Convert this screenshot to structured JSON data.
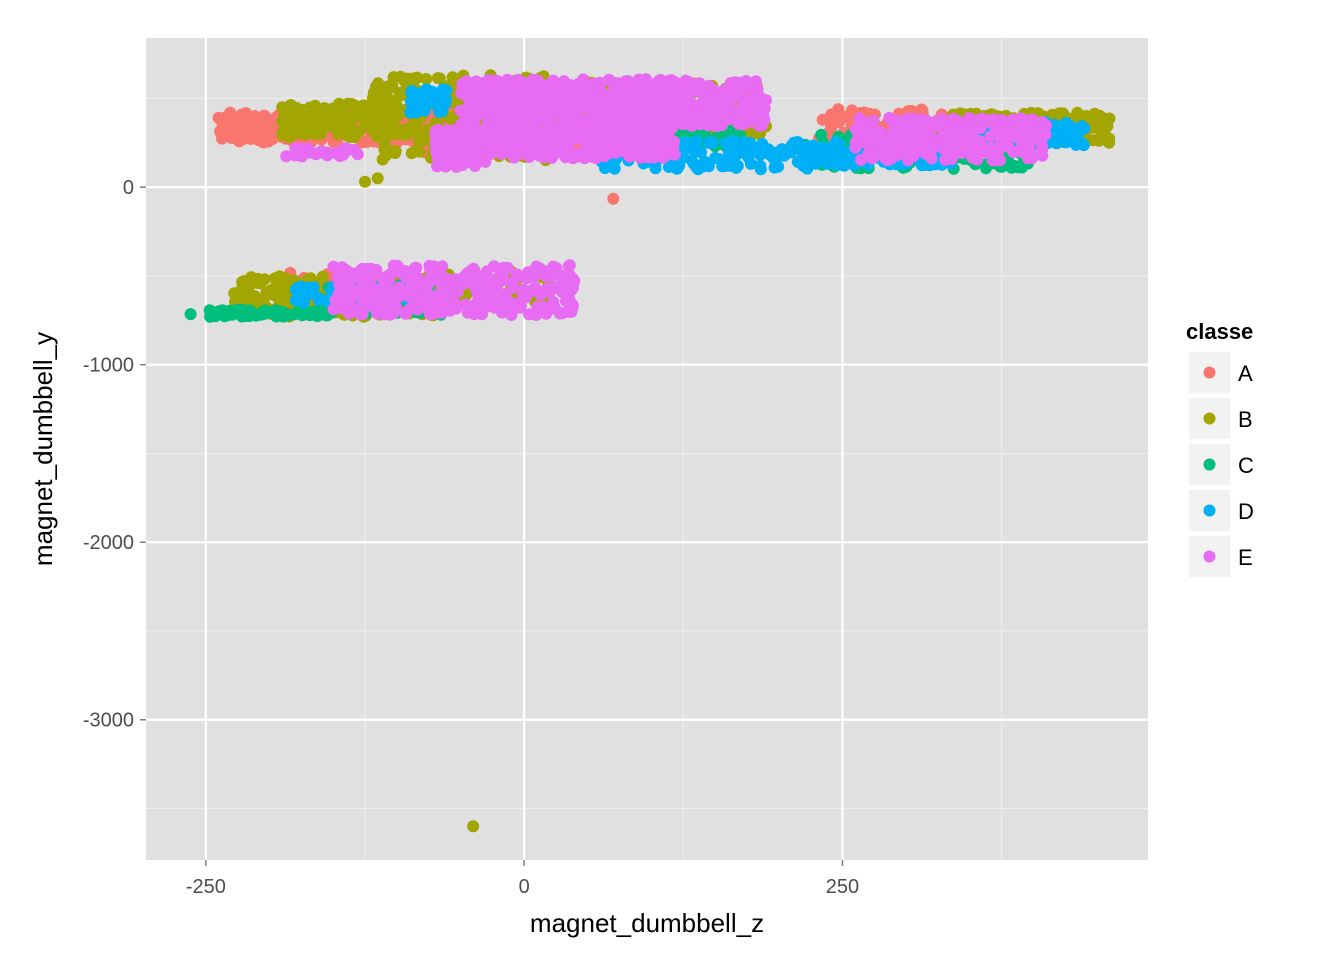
{
  "chart_data": {
    "type": "scatter",
    "xlabel": "magnet_dumbbell_z",
    "ylabel": "magnet_dumbbell_y",
    "xlim": [
      -297,
      490
    ],
    "ylim": [
      -3790,
      840
    ],
    "x_ticks": [
      -250,
      0,
      250
    ],
    "x_tick_labels": [
      "-250",
      "0",
      "250"
    ],
    "y_ticks": [
      0,
      -1000,
      -2000,
      -3000
    ],
    "y_tick_labels": [
      "0",
      "-1000",
      "-2000",
      "-3000"
    ],
    "grid": true,
    "background": "#E0E0E0",
    "legend": {
      "title": "classe",
      "position": "right",
      "entries": [
        {
          "label": "A",
          "color": "#F8766D"
        },
        {
          "label": "B",
          "color": "#A3A500"
        },
        {
          "label": "C",
          "color": "#00BF7D"
        },
        {
          "label": "D",
          "color": "#00B0F6"
        },
        {
          "label": "E",
          "color": "#E76BF3"
        }
      ]
    },
    "series": [
      {
        "name": "A",
        "color": "#F8766D",
        "clusters": [
          {
            "x": [
              -240,
              -30
            ],
            "y": [
              250,
              420
            ],
            "n": 320
          },
          {
            "x": [
              -80,
              100
            ],
            "y": [
              180,
              520
            ],
            "n": 350
          },
          {
            "x": [
              230,
              330
            ],
            "y": [
              200,
              440
            ],
            "n": 140
          },
          {
            "x": [
              -190,
              -60
            ],
            "y": [
              -700,
              -480
            ],
            "n": 110
          }
        ],
        "points": [
          [
            70,
            -65
          ],
          [
            -240,
            390
          ],
          [
            -150,
            300
          ]
        ]
      },
      {
        "name": "B",
        "color": "#A3A500",
        "clusters": [
          {
            "x": [
              -190,
              -90
            ],
            "y": [
              280,
              470
            ],
            "n": 160
          },
          {
            "x": [
              -120,
              20
            ],
            "y": [
              150,
              630
            ],
            "n": 260
          },
          {
            "x": [
              20,
              190
            ],
            "y": [
              300,
              590
            ],
            "n": 220
          },
          {
            "x": [
              330,
              460
            ],
            "y": [
              240,
              420
            ],
            "n": 170
          },
          {
            "x": [
              -230,
              -60
            ],
            "y": [
              -730,
              -500
            ],
            "n": 200
          },
          {
            "x": [
              -60,
              20
            ],
            "y": [
              -650,
              -470
            ],
            "n": 60
          }
        ],
        "points": [
          [
            -40,
            -3600
          ],
          [
            -125,
            30
          ],
          [
            -115,
            50
          ],
          [
            -190,
            450
          ]
        ]
      },
      {
        "name": "C",
        "color": "#00BF7D",
        "clusters": [
          {
            "x": [
              220,
              400
            ],
            "y": [
              100,
              300
            ],
            "n": 130
          },
          {
            "x": [
              110,
              170
            ],
            "y": [
              230,
              340
            ],
            "n": 50
          },
          {
            "x": [
              -250,
              -150
            ],
            "y": [
              -730,
              -690
            ],
            "n": 70
          },
          {
            "x": [
              -160,
              -60
            ],
            "y": [
              -720,
              -540
            ],
            "n": 80
          }
        ],
        "points": [
          [
            -262,
            -715
          ],
          [
            -35,
            240
          ],
          [
            390,
            200
          ]
        ]
      },
      {
        "name": "D",
        "color": "#00B0F6",
        "clusters": [
          {
            "x": [
              -90,
              -60
            ],
            "y": [
              420,
              560
            ],
            "n": 40
          },
          {
            "x": [
              60,
              250
            ],
            "y": [
              100,
              260
            ],
            "n": 140
          },
          {
            "x": [
              220,
              340
            ],
            "y": [
              120,
              230
            ],
            "n": 110
          },
          {
            "x": [
              340,
              440
            ],
            "y": [
              230,
              370
            ],
            "n": 90
          },
          {
            "x": [
              -180,
              -70
            ],
            "y": [
              -660,
              -560
            ],
            "n": 70
          }
        ],
        "points": [
          [
            0,
            250
          ],
          [
            180,
            200
          ],
          [
            440,
            330
          ]
        ]
      },
      {
        "name": "E",
        "color": "#E76BF3",
        "clusters": [
          {
            "x": [
              -50,
              120
            ],
            "y": [
              160,
              610
            ],
            "n": 700
          },
          {
            "x": [
              100,
              190
            ],
            "y": [
              340,
              600
            ],
            "n": 200
          },
          {
            "x": [
              -70,
              -30
            ],
            "y": [
              110,
              330
            ],
            "n": 120
          },
          {
            "x": [
              -190,
              -130
            ],
            "y": [
              170,
              220
            ],
            "n": 30
          },
          {
            "x": [
              260,
              410
            ],
            "y": [
              150,
              390
            ],
            "n": 240
          },
          {
            "x": [
              -150,
              40
            ],
            "y": [
              -720,
              -440
            ],
            "n": 300
          }
        ],
        "points": [
          [
            -180,
            180
          ],
          [
            30,
            -710
          ],
          [
            190,
            490
          ],
          [
            -10,
            -720
          ],
          [
            340,
            280
          ]
        ]
      }
    ]
  }
}
